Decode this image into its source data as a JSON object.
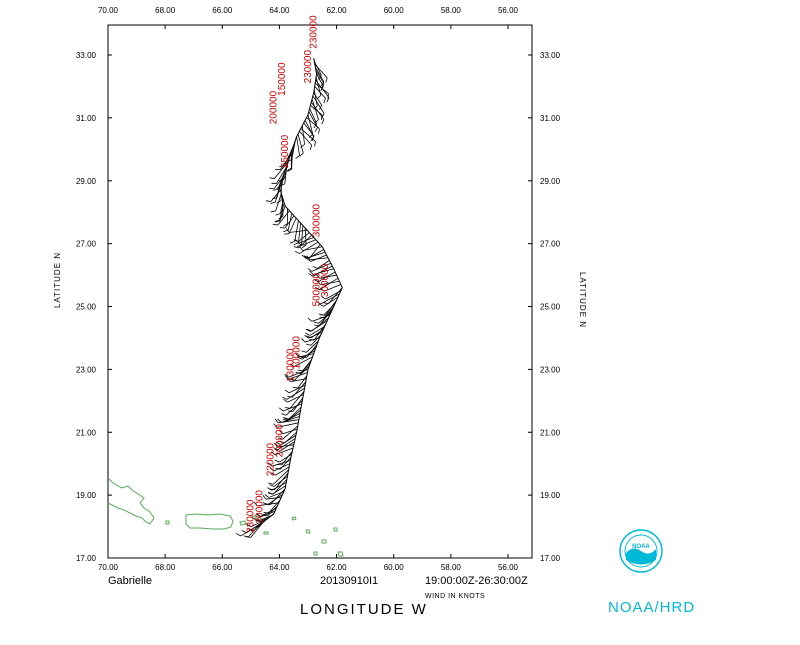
{
  "storm": {
    "name": "Gabrielle",
    "flight_id": "20130910I1",
    "time_range": "19:00:00Z-26:30:00Z",
    "wind_units": "WIND IN KNOTS"
  },
  "axes": {
    "x_title": "LONGITUDE    W",
    "y_title": "LATITUDE    N",
    "lon_ticks": [
      "70.00",
      "68.00",
      "66.00",
      "64.00",
      "62.00",
      "60.00",
      "58.00",
      "56.00"
    ],
    "lat_ticks": [
      "17.00",
      "19.00",
      "21.00",
      "23.00",
      "25.00",
      "27.00",
      "29.00",
      "31.00",
      "33.00"
    ],
    "lon_range": [
      70,
      55
    ],
    "lat_range": [
      17,
      34
    ]
  },
  "agency": {
    "label": "NOAA/HRD",
    "logo_text": "NOAA",
    "color": "#00b8d8"
  },
  "colors": {
    "track": "#000000",
    "coast": "#5aaa5a",
    "time_labels": "#cc0000"
  },
  "track": [
    [
      64.8,
      18.0
    ],
    [
      64.2,
      18.4
    ],
    [
      63.8,
      19.2
    ],
    [
      63.6,
      20.2
    ],
    [
      63.4,
      21.0
    ],
    [
      63.2,
      22.0
    ],
    [
      63.0,
      23.0
    ],
    [
      62.6,
      24.0
    ],
    [
      62.1,
      25.0
    ],
    [
      61.8,
      25.6
    ],
    [
      62.1,
      26.2
    ],
    [
      62.5,
      26.9
    ],
    [
      63.1,
      27.5
    ],
    [
      63.8,
      28.2
    ],
    [
      64.0,
      28.8
    ],
    [
      63.7,
      29.6
    ],
    [
      63.4,
      30.4
    ],
    [
      63.0,
      31.1
    ],
    [
      62.8,
      31.8
    ],
    [
      62.7,
      32.4
    ],
    [
      62.8,
      32.9
    ]
  ],
  "time_labels": [
    {
      "text": "230000",
      "lon": 64.9,
      "lat": 17.8
    },
    {
      "text": "200000",
      "lon": 64.6,
      "lat": 18.1
    },
    {
      "text": "220000",
      "lon": 64.2,
      "lat": 19.6
    },
    {
      "text": "200000",
      "lon": 63.9,
      "lat": 20.2
    },
    {
      "text": "130000",
      "lon": 63.5,
      "lat": 22.6
    },
    {
      "text": "100000",
      "lon": 63.3,
      "lat": 23.0
    },
    {
      "text": "500000",
      "lon": 62.6,
      "lat": 25.0
    },
    {
      "text": "300000",
      "lon": 62.3,
      "lat": 25.3
    },
    {
      "text": "300000",
      "lon": 62.6,
      "lat": 27.2
    },
    {
      "text": "250000",
      "lon": 63.7,
      "lat": 29.4
    },
    {
      "text": "200000",
      "lon": 64.1,
      "lat": 30.8
    },
    {
      "text": "150000",
      "lon": 63.8,
      "lat": 31.7
    },
    {
      "text": "230000",
      "lon": 62.9,
      "lat": 32.1
    },
    {
      "text": "230000",
      "lon": 62.7,
      "lat": 33.2
    }
  ]
}
